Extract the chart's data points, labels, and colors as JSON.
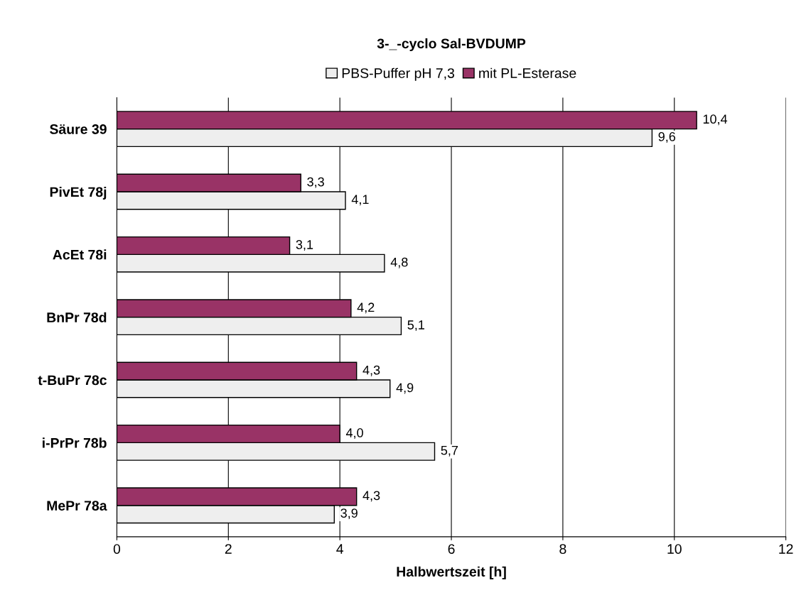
{
  "chart_data": {
    "type": "bar",
    "orientation": "horizontal",
    "title": "3-_-cyclo Sal-BVDUMP",
    "xlabel": "Halbwertszeit [h]",
    "categories": [
      "Säure 39",
      "PivEt 78j",
      "AcEt 78i",
      "BnPr 78d",
      "t-BuPr 78c",
      "i-PrPr 78b",
      "MePr 78a"
    ],
    "series": [
      {
        "name": "PBS-Puffer pH 7,3",
        "color": "#eeeeee",
        "values": [
          9.6,
          4.1,
          4.8,
          5.1,
          4.9,
          5.7,
          3.9
        ],
        "value_labels": [
          "9,6",
          "4,1",
          "4,8",
          "5,1",
          "4,9",
          "5,7",
          "3,9"
        ]
      },
      {
        "name": "mit PL-Esterase",
        "color": "#993366",
        "values": [
          10.4,
          3.3,
          3.1,
          4.2,
          4.3,
          4.0,
          4.3
        ],
        "value_labels": [
          "10,4",
          "3,3",
          "3,1",
          "4,2",
          "4,3",
          "4,0",
          "4,3"
        ]
      }
    ],
    "xlim": [
      0,
      12
    ],
    "xticks": [
      0,
      2,
      4,
      6,
      8,
      10,
      12
    ],
    "grid": "x",
    "legend": "top"
  }
}
